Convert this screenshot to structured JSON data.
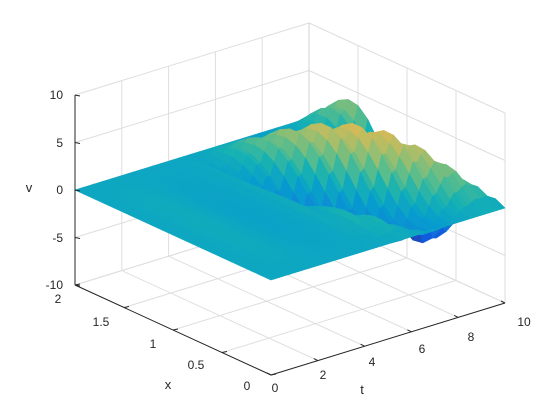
{
  "chart_data": {
    "type": "surface",
    "colormap": "parula",
    "xlabel": "t",
    "ylabel": "x",
    "zlabel": "v",
    "t_range": [
      0,
      10
    ],
    "x_range": [
      0,
      2
    ],
    "z_range": [
      -10,
      10
    ],
    "t_ticks": [
      0,
      2,
      4,
      6,
      8,
      10
    ],
    "x_ticks": [
      0,
      0.5,
      1,
      1.5,
      2
    ],
    "z_ticks": [
      -10,
      -5,
      0,
      5,
      10
    ],
    "t_tick_labels": [
      "0",
      "2",
      "4",
      "6",
      "8",
      "10"
    ],
    "x_tick_labels": [
      "0",
      "0.5",
      "1",
      "1.5",
      "2"
    ],
    "z_tick_labels": [
      "-10",
      "-5",
      "0",
      "5",
      "10"
    ],
    "grid": true,
    "view_azimuth": -37.5,
    "view_elevation": 30,
    "description": "v(t,x) = 0 on the left half of the t range and along x=0, x=2; on the right half a wave packet sits across x with growing amplitude, peaking about +8 near x≈2, t≈6.5 and about -8 near x≈0.5, t≈7.5",
    "surface_samples": [
      {
        "t": 0,
        "x": 1,
        "v": 0
      },
      {
        "t": 5,
        "x": 1,
        "v": 0
      },
      {
        "t": 6.6,
        "x": 1.9,
        "v": 8.3
      },
      {
        "t": 7.6,
        "x": 0.4,
        "v": -8.2
      },
      {
        "t": 9.6,
        "x": 0.1,
        "v": 7.5
      },
      {
        "t": 10,
        "x": 0,
        "v": 0
      }
    ]
  }
}
